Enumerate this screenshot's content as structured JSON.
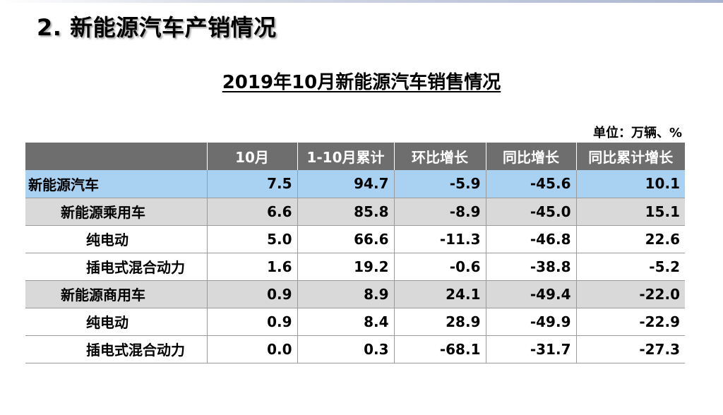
{
  "slide_title": "2. 新能源汽车产销情况",
  "table_title": "2019年10月新能源汽车销售情况",
  "unit_label": "单位：万辆、%",
  "table": {
    "columns": [
      "",
      "10月",
      "1-10月累计",
      "环比增长",
      "同比增长",
      "同比累计增长"
    ],
    "rows": [
      {
        "type": "total",
        "cells": [
          "新能源汽车",
          "7.5",
          "94.7",
          "-5.9",
          "-45.6",
          "10.1"
        ]
      },
      {
        "type": "group",
        "cells": [
          "新能源乘用车",
          "6.6",
          "85.8",
          "-8.9",
          "-45.0",
          "15.1"
        ]
      },
      {
        "type": "sub",
        "cells": [
          "纯电动",
          "5.0",
          "66.6",
          "-11.3",
          "-46.8",
          "22.6"
        ]
      },
      {
        "type": "sub",
        "cells": [
          "插电式混合动力",
          "1.6",
          "19.2",
          "-0.6",
          "-38.8",
          "-5.2"
        ]
      },
      {
        "type": "group",
        "cells": [
          "新能源商用车",
          "0.9",
          "8.9",
          "24.1",
          "-49.4",
          "-22.0"
        ]
      },
      {
        "type": "sub",
        "cells": [
          "纯电动",
          "0.9",
          "8.4",
          "28.9",
          "-49.9",
          "-22.9"
        ]
      },
      {
        "type": "sub",
        "cells": [
          "插电式混合动力",
          "0.0",
          "0.3",
          "-68.1",
          "-31.7",
          "-27.3"
        ]
      }
    ]
  }
}
